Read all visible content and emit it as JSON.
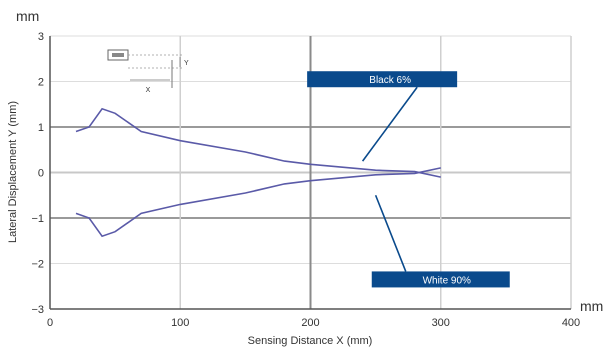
{
  "chart_data": {
    "type": "line",
    "title": "",
    "xlabel": "Sensing Distance X (mm)",
    "ylabel": "Lateral Displacement Y (mm)",
    "x_unit": "mm",
    "y_unit": "mm",
    "xlim": [
      0,
      400
    ],
    "ylim": [
      -3,
      3
    ],
    "x_ticks": [
      0,
      100,
      200,
      300,
      400
    ],
    "y_ticks": [
      3,
      2,
      1,
      0,
      -1,
      -2,
      -3
    ],
    "x_tick_labels": [
      "0",
      "100",
      "200",
      "300",
      "400"
    ],
    "y_tick_labels": [
      "3",
      "2",
      "1",
      "0",
      "−1",
      "−2",
      "−3"
    ],
    "grid": true,
    "series": [
      {
        "name": "Black 6%",
        "color": "#5a5aa8",
        "upper": [
          [
            20,
            0.9
          ],
          [
            30,
            1.0
          ],
          [
            40,
            1.4
          ],
          [
            50,
            1.3
          ],
          [
            70,
            0.9
          ],
          [
            100,
            0.7
          ],
          [
            150,
            0.45
          ],
          [
            180,
            0.25
          ],
          [
            200,
            0.18
          ],
          [
            250,
            0.05
          ],
          [
            280,
            0.02
          ],
          [
            300,
            -0.1
          ]
        ],
        "lower": [
          [
            20,
            -0.9
          ],
          [
            30,
            -1.0
          ],
          [
            40,
            -1.4
          ],
          [
            50,
            -1.3
          ],
          [
            70,
            -0.9
          ],
          [
            100,
            -0.7
          ],
          [
            150,
            -0.45
          ],
          [
            180,
            -0.25
          ],
          [
            200,
            -0.18
          ],
          [
            250,
            -0.05
          ],
          [
            280,
            -0.02
          ],
          [
            300,
            0.1
          ]
        ]
      },
      {
        "name": "White 90%",
        "color": "#5a5aa8"
      }
    ],
    "annotations": [
      {
        "text": "Black 6%",
        "value_x": 255,
        "value_y": 2.05,
        "pointer_to": [
          240,
          0.25
        ]
      },
      {
        "text": "White 90%",
        "value_x": 300,
        "value_y": -2.35,
        "pointer_to": [
          250,
          -0.5
        ]
      }
    ],
    "inset_labels": {
      "y": "Y",
      "x": "X"
    },
    "annotation_color": "#0a4a8c"
  }
}
